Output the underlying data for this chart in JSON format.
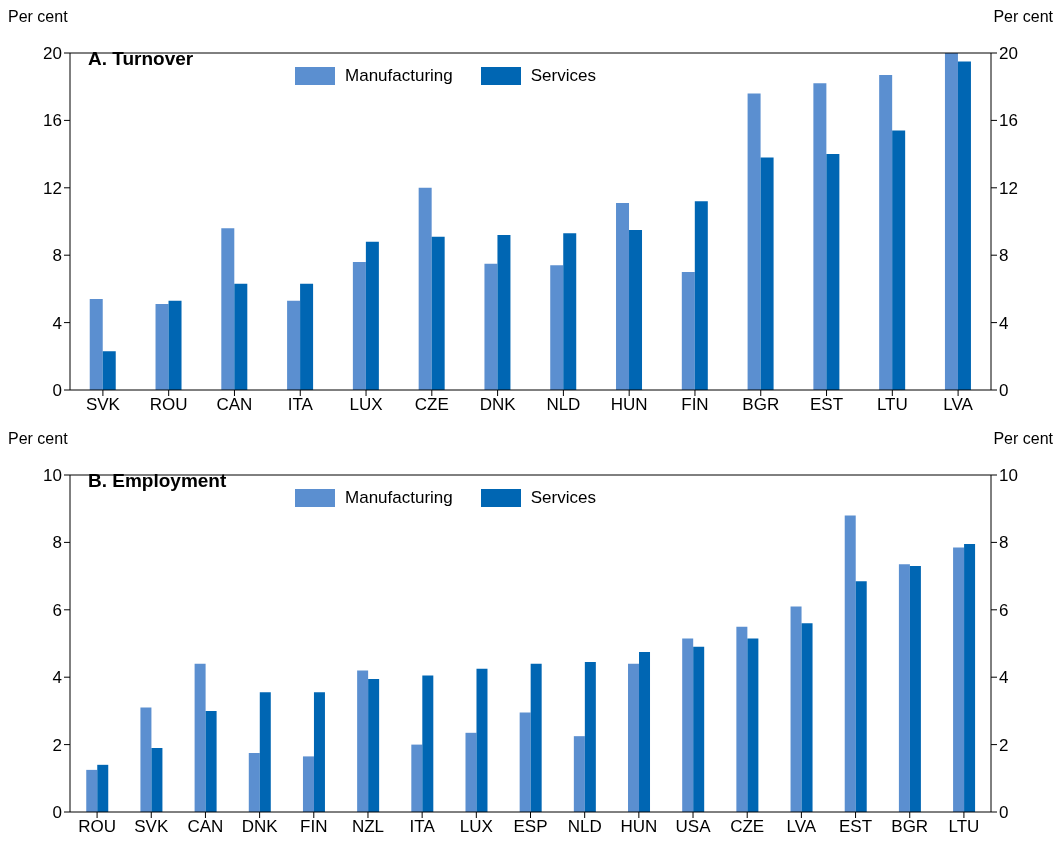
{
  "chart_data": [
    {
      "type": "bar",
      "title": "A. Turnover",
      "ylabel": "Per cent",
      "y2label": "Per cent",
      "categories": [
        "SVK",
        "ROU",
        "CAN",
        "ITA",
        "LUX",
        "CZE",
        "DNK",
        "NLD",
        "HUN",
        "FIN",
        "BGR",
        "EST",
        "LTU",
        "LVA"
      ],
      "series": [
        {
          "name": "Manufacturing",
          "color": "#5b8fd0",
          "values": [
            5.4,
            5.1,
            9.6,
            5.3,
            7.6,
            12.0,
            7.5,
            7.4,
            11.1,
            7.0,
            17.6,
            18.2,
            18.7,
            20.0
          ]
        },
        {
          "name": "Services",
          "color": "#0066b3",
          "values": [
            2.3,
            5.3,
            6.3,
            6.3,
            8.8,
            9.1,
            9.2,
            9.3,
            9.5,
            11.2,
            13.8,
            14.0,
            15.4,
            19.5
          ]
        }
      ],
      "ylim": [
        0,
        20
      ],
      "yticks": [
        0,
        4,
        8,
        12,
        16,
        20
      ],
      "y2lim": [
        0,
        20
      ],
      "y2ticks": [
        0,
        4,
        8,
        12,
        16,
        20
      ],
      "legend": "top",
      "grid": false
    },
    {
      "type": "bar",
      "title": "B. Employment",
      "ylabel": "Per cent",
      "y2label": "Per cent",
      "categories": [
        "ROU",
        "SVK",
        "CAN",
        "DNK",
        "FIN",
        "NZL",
        "ITA",
        "LUX",
        "ESP",
        "NLD",
        "HUN",
        "USA",
        "CZE",
        "LVA",
        "EST",
        "BGR",
        "LTU"
      ],
      "series": [
        {
          "name": "Manufacturing",
          "color": "#5b8fd0",
          "values": [
            1.25,
            3.1,
            4.4,
            1.75,
            1.65,
            4.2,
            2.0,
            2.35,
            2.95,
            2.25,
            4.4,
            5.15,
            5.5,
            6.1,
            8.8,
            7.35,
            7.85
          ]
        },
        {
          "name": "Services",
          "color": "#0066b3",
          "values": [
            1.4,
            1.9,
            3.0,
            3.55,
            3.55,
            3.95,
            4.05,
            4.25,
            4.4,
            4.45,
            4.75,
            4.9,
            5.15,
            5.6,
            6.85,
            7.3,
            7.95
          ]
        }
      ],
      "ylim": [
        0,
        10
      ],
      "yticks": [
        0,
        2,
        4,
        6,
        8,
        10
      ],
      "y2lim": [
        0,
        10
      ],
      "y2ticks": [
        0,
        2,
        4,
        6,
        8,
        10
      ],
      "legend": "top",
      "grid": false
    }
  ]
}
